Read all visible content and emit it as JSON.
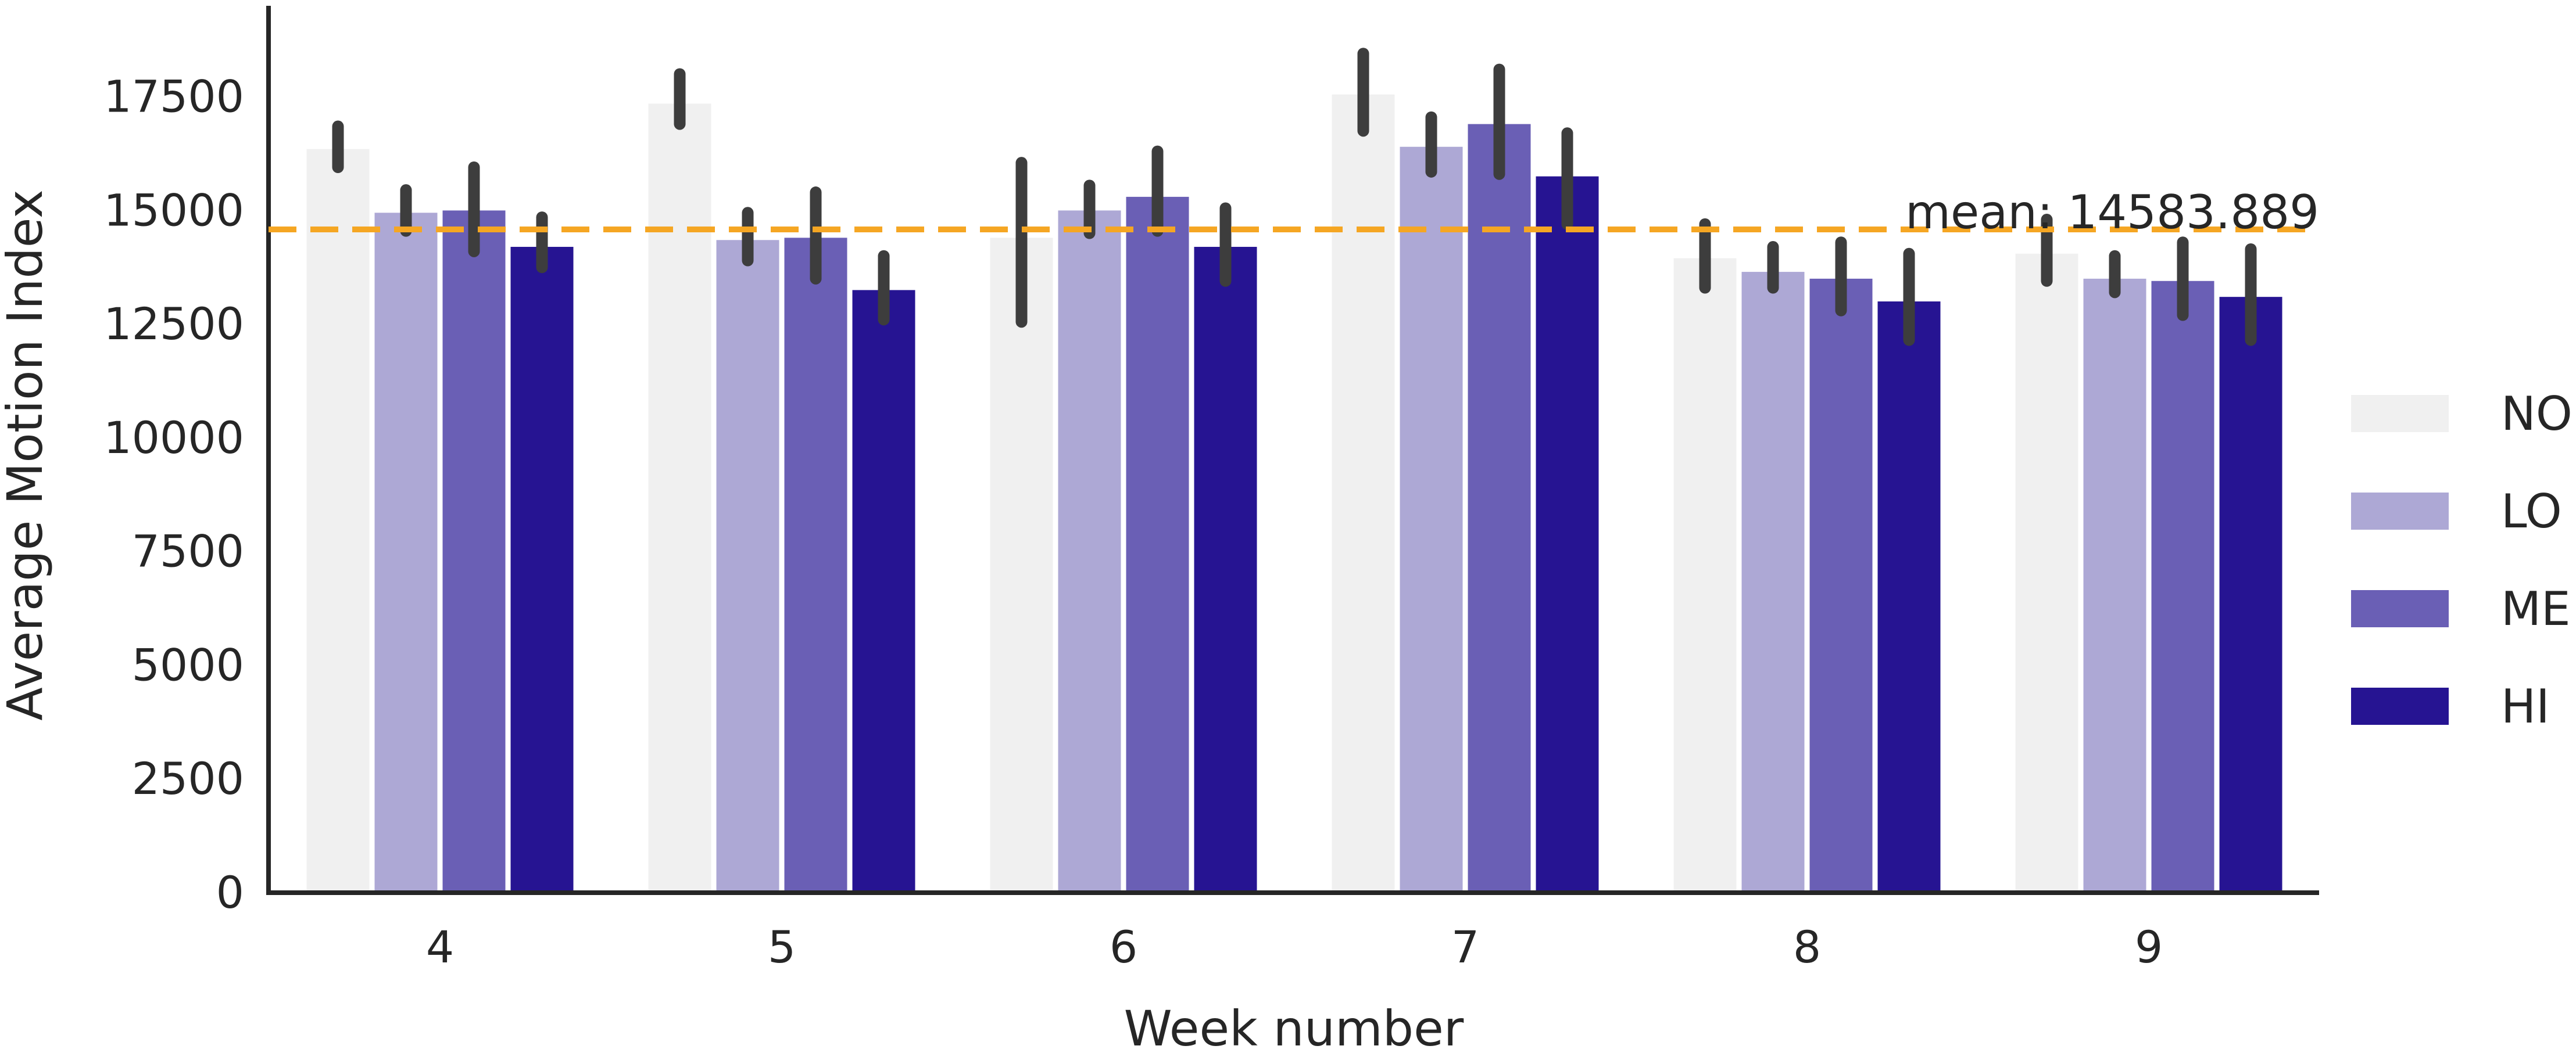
{
  "chart_data": {
    "type": "bar",
    "title": "",
    "xlabel": "Week number",
    "ylabel": "Average Motion Index",
    "categories": [
      "4",
      "5",
      "6",
      "7",
      "8",
      "9"
    ],
    "ylim": [
      0,
      19500
    ],
    "yticks": [
      0,
      2500,
      5000,
      7500,
      10000,
      12500,
      15000,
      17500
    ],
    "ytick_labels": [
      "0",
      "2500",
      "5000",
      "7500",
      "10000",
      "12500",
      "15000",
      "17500"
    ],
    "grid": false,
    "legend_position": "right",
    "series": [
      {
        "name": "NO",
        "color": "#f0f0f0",
        "values": [
          16350,
          17350,
          14400,
          17550,
          13950,
          14050
        ],
        "ci_low": [
          15950,
          16900,
          12550,
          16750,
          13300,
          13450
        ],
        "ci_high": [
          16850,
          18000,
          16050,
          18450,
          14700,
          14800
        ]
      },
      {
        "name": "LO",
        "color": "#ada8d5",
        "values": [
          14950,
          14350,
          15000,
          16400,
          13650,
          13500
        ],
        "ci_low": [
          14550,
          13900,
          14500,
          15850,
          13300,
          13200
        ],
        "ci_high": [
          15450,
          14950,
          15550,
          17050,
          14200,
          14000
        ]
      },
      {
        "name": "ME",
        "color": "#6a5fb5",
        "values": [
          15000,
          14400,
          15300,
          16900,
          13500,
          13450
        ],
        "ci_low": [
          14100,
          13500,
          14550,
          15800,
          12800,
          12700
        ],
        "ci_high": [
          15950,
          15400,
          16300,
          18100,
          14300,
          14300
        ]
      },
      {
        "name": "HI",
        "color": "#261492",
        "values": [
          14200,
          13250,
          14200,
          15750,
          13000,
          13100
        ],
        "ci_low": [
          13750,
          12600,
          13450,
          14700,
          12150,
          12150
        ],
        "ci_high": [
          14850,
          14000,
          15050,
          16700,
          14050,
          14150
        ]
      }
    ],
    "reference_line": {
      "value": 14583.889,
      "label": "mean: 14583.889",
      "color": "#f5a623",
      "style": "dashed"
    }
  }
}
